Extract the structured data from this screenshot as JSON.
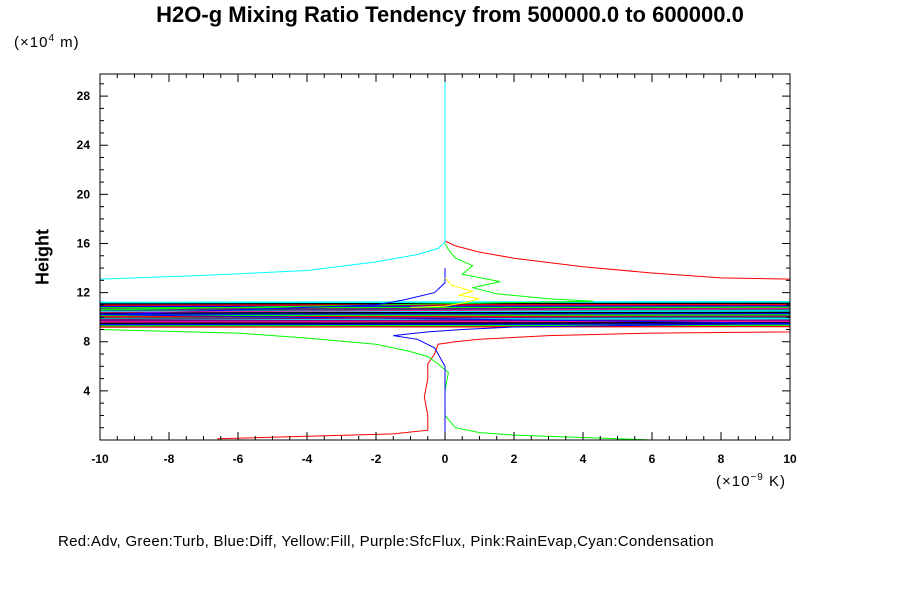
{
  "chart_data": {
    "type": "line",
    "title": "H2O-g Mixing Ratio Tendency from 500000.0 to 600000.0",
    "ylabel": "Height",
    "yunit": "(×10",
    "yunit_exp": "4",
    "yunit_end": " m)",
    "xunit": "(×10",
    "xunit_exp": "−9",
    "xunit_end": " K)",
    "xlim": [
      -10,
      10
    ],
    "ylim": [
      0,
      29.8
    ],
    "x_ticks": [
      "-10",
      "-8",
      "-6",
      "-4",
      "-2",
      "0",
      "2",
      "4",
      "6",
      "8",
      "10"
    ],
    "y_ticks": [
      "4",
      "8",
      "12",
      "16",
      "20",
      "24",
      "28"
    ],
    "legend_text": "Red:Adv, Green:Turb, Blue:Diff, Yellow:Fill, Purple:SfcFlux, Pink:RainEvap,Cyan:Condensation",
    "series": [
      {
        "name": "Red:Adv",
        "color": "#ff0000",
        "points": [
          [
            -6.6,
            0.1
          ],
          [
            -4,
            0.3
          ],
          [
            -1.5,
            0.5
          ],
          [
            -0.5,
            0.8
          ],
          [
            -0.5,
            2
          ],
          [
            -0.6,
            3.5
          ],
          [
            -0.5,
            5
          ],
          [
            -0.5,
            6.2
          ],
          [
            -0.3,
            7
          ],
          [
            -0.2,
            7.8
          ],
          [
            0.3,
            8
          ],
          [
            1,
            8.2
          ],
          [
            3,
            8.5
          ],
          [
            6,
            8.7
          ],
          [
            10,
            8.8
          ],
          [
            10,
            13.1
          ],
          [
            8,
            13.2
          ],
          [
            6,
            13.6
          ],
          [
            4,
            14.1
          ],
          [
            2,
            14.8
          ],
          [
            1,
            15.3
          ],
          [
            0.3,
            15.8
          ],
          [
            0,
            16.2
          ]
        ]
      },
      {
        "name": "Green:Turb",
        "color": "#00ff00",
        "points": [
          [
            6,
            0
          ],
          [
            4,
            0.2
          ],
          [
            2,
            0.4
          ],
          [
            1,
            0.6
          ],
          [
            0.3,
            1
          ],
          [
            0,
            2
          ],
          [
            0,
            4
          ],
          [
            0.1,
            5.5
          ],
          [
            -0.2,
            6.2
          ],
          [
            -0.5,
            6.8
          ],
          [
            -1,
            7.2
          ],
          [
            -2,
            7.8
          ],
          [
            -4,
            8.3
          ],
          [
            -6,
            8.7
          ],
          [
            -10,
            9
          ],
          [
            -10,
            10.6
          ],
          [
            4.3,
            11.3
          ],
          [
            3,
            11.5
          ],
          [
            1.5,
            11.9
          ],
          [
            0.8,
            12.4
          ],
          [
            1.6,
            12.9
          ],
          [
            0.5,
            13.5
          ],
          [
            0.8,
            14.2
          ],
          [
            0.3,
            14.8
          ],
          [
            0.1,
            15.5
          ],
          [
            0,
            16
          ]
        ]
      },
      {
        "name": "Blue:Diff",
        "color": "#0000ff",
        "points": [
          [
            0,
            0
          ],
          [
            0,
            2
          ],
          [
            0,
            4
          ],
          [
            0,
            6
          ],
          [
            -0.3,
            7.5
          ],
          [
            -0.8,
            8.2
          ],
          [
            -1.5,
            8.5
          ],
          [
            -0.5,
            8.8
          ],
          [
            0.5,
            9
          ],
          [
            2,
            9.2
          ],
          [
            10,
            9.5
          ],
          [
            -10,
            10.2
          ],
          [
            -2,
            11
          ],
          [
            -1.2,
            11.4
          ],
          [
            -0.3,
            12
          ],
          [
            0,
            12.8
          ],
          [
            0,
            14
          ]
        ]
      },
      {
        "name": "Yellow:Fill",
        "color": "#ffff00",
        "points": [
          [
            -1,
            10.8
          ],
          [
            0,
            10.9
          ],
          [
            0.6,
            11.2
          ],
          [
            1,
            11.5
          ],
          [
            0.4,
            11.8
          ],
          [
            0.8,
            12.1
          ],
          [
            0.2,
            12.6
          ],
          [
            0,
            13.2
          ]
        ]
      },
      {
        "name": "Purple:SfcFlux",
        "color": "#800080",
        "points": [
          [
            -10,
            9.8
          ],
          [
            10,
            10.1
          ]
        ]
      },
      {
        "name": "Pink:RainEvap",
        "color": "#ff1493",
        "points": [
          [
            -10,
            10.4
          ],
          [
            10,
            10.7
          ]
        ]
      },
      {
        "name": "Cyan:Condensation",
        "color": "#00ffff",
        "points": [
          [
            -10,
            13.1
          ],
          [
            -7,
            13.4
          ],
          [
            -4,
            13.8
          ],
          [
            -2,
            14.5
          ],
          [
            -0.8,
            15.1
          ],
          [
            -0.2,
            15.6
          ],
          [
            0,
            16.1
          ],
          [
            0,
            20
          ],
          [
            0,
            29.8
          ]
        ]
      }
    ],
    "band_colors": [
      "#ff0000",
      "#00ff00",
      "#0000ff",
      "#000000",
      "#ff1493",
      "#800080",
      "#00ffff",
      "#008080",
      "#ff0000",
      "#00ff00",
      "#0000ff",
      "#000000",
      "#00ffff",
      "#008080",
      "#800080",
      "#00ff00",
      "#0000ff",
      "#ff0000",
      "#000000",
      "#00ffff"
    ],
    "band_range": [
      9.2,
      11.2
    ]
  }
}
